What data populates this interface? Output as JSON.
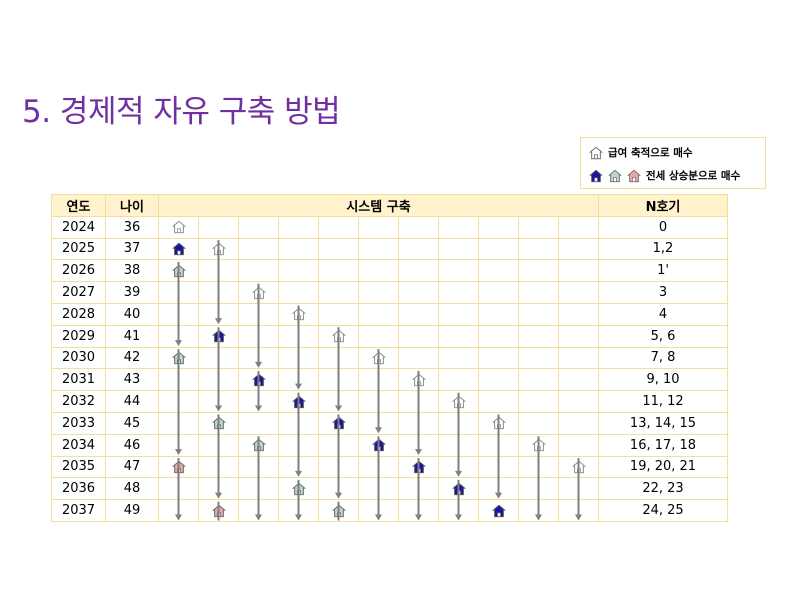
{
  "title": "5. 경제적 자유 구축 방법",
  "legend": {
    "item1_label": "급여 축적으로 매수",
    "item2_label": "전세 상승분으로 매수"
  },
  "colors": {
    "title": "#7030a0",
    "house_outline": "#8a8a8a",
    "house_blue": "#1a14a3",
    "house_teal": "#bcd3d6",
    "house_pink": "#e8a6a6",
    "header_bg": "#fff2cc",
    "grid_line": "#f3de9a",
    "arrow": "#7f7f7f"
  },
  "table": {
    "headers": {
      "year": "연도",
      "age": "나이",
      "system": "시스템 구축",
      "n": "N호기"
    },
    "rows": [
      {
        "year": "2024",
        "age": "36",
        "n": "0"
      },
      {
        "year": "2025",
        "age": "37",
        "n": "1,2"
      },
      {
        "year": "2026",
        "age": "38",
        "n": "1'"
      },
      {
        "year": "2027",
        "age": "39",
        "n": "3"
      },
      {
        "year": "2028",
        "age": "40",
        "n": "4"
      },
      {
        "year": "2029",
        "age": "41",
        "n": "5, 6"
      },
      {
        "year": "2030",
        "age": "42",
        "n": "7, 8"
      },
      {
        "year": "2031",
        "age": "43",
        "n": "9, 10"
      },
      {
        "year": "2032",
        "age": "44",
        "n": "11, 12"
      },
      {
        "year": "2033",
        "age": "45",
        "n": "13, 14, 15"
      },
      {
        "year": "2034",
        "age": "46",
        "n": "16, 17, 18"
      },
      {
        "year": "2035",
        "age": "47",
        "n": "19, 20, 21"
      },
      {
        "year": "2036",
        "age": "48",
        "n": "22, 23"
      },
      {
        "year": "2037",
        "age": "49",
        "n": "24, 25"
      }
    ]
  },
  "houses": [
    {
      "row": 0,
      "col": 0,
      "type": "outline"
    },
    {
      "row": 1,
      "col": 0,
      "type": "blue"
    },
    {
      "row": 1,
      "col": 1,
      "type": "outline"
    },
    {
      "row": 2,
      "col": 0,
      "type": "teal"
    },
    {
      "row": 3,
      "col": 2,
      "type": "outline"
    },
    {
      "row": 4,
      "col": 3,
      "type": "outline"
    },
    {
      "row": 5,
      "col": 1,
      "type": "blue"
    },
    {
      "row": 5,
      "col": 4,
      "type": "outline"
    },
    {
      "row": 6,
      "col": 0,
      "type": "teal"
    },
    {
      "row": 6,
      "col": 5,
      "type": "outline"
    },
    {
      "row": 7,
      "col": 2,
      "type": "blue"
    },
    {
      "row": 7,
      "col": 6,
      "type": "outline"
    },
    {
      "row": 8,
      "col": 3,
      "type": "blue"
    },
    {
      "row": 8,
      "col": 7,
      "type": "outline"
    },
    {
      "row": 9,
      "col": 1,
      "type": "teal"
    },
    {
      "row": 9,
      "col": 4,
      "type": "blue"
    },
    {
      "row": 9,
      "col": 8,
      "type": "outline"
    },
    {
      "row": 10,
      "col": 2,
      "type": "teal"
    },
    {
      "row": 10,
      "col": 5,
      "type": "blue"
    },
    {
      "row": 10,
      "col": 9,
      "type": "outline"
    },
    {
      "row": 11,
      "col": 0,
      "type": "pink"
    },
    {
      "row": 11,
      "col": 6,
      "type": "blue"
    },
    {
      "row": 11,
      "col": 10,
      "type": "outline"
    },
    {
      "row": 12,
      "col": 3,
      "type": "teal"
    },
    {
      "row": 12,
      "col": 7,
      "type": "blue"
    },
    {
      "row": 13,
      "col": 1,
      "type": "pink"
    },
    {
      "row": 13,
      "col": 4,
      "type": "teal"
    },
    {
      "row": 13,
      "col": 8,
      "type": "blue"
    }
  ],
  "arrows": [
    {
      "col": 0,
      "from": 2,
      "to": 5,
      "end": "head"
    },
    {
      "col": 0,
      "from": 6,
      "to": 10,
      "end": "head"
    },
    {
      "col": 0,
      "from": 11,
      "to": 13,
      "end": "head"
    },
    {
      "col": 1,
      "from": 1,
      "to": 4,
      "end": "head"
    },
    {
      "col": 1,
      "from": 5,
      "to": 8,
      "end": "head"
    },
    {
      "col": 1,
      "from": 9,
      "to": 12,
      "end": "head"
    },
    {
      "col": 1,
      "from": 13,
      "to": 13,
      "end": "cut"
    },
    {
      "col": 2,
      "from": 3,
      "to": 6,
      "end": "head"
    },
    {
      "col": 2,
      "from": 7,
      "to": 8,
      "end": "head"
    },
    {
      "col": 2,
      "from": 10,
      "to": 13,
      "end": "head"
    },
    {
      "col": 3,
      "from": 4,
      "to": 7,
      "end": "head"
    },
    {
      "col": 3,
      "from": 8,
      "to": 11,
      "end": "head"
    },
    {
      "col": 3,
      "from": 12,
      "to": 13,
      "end": "head"
    },
    {
      "col": 4,
      "from": 5,
      "to": 8,
      "end": "head"
    },
    {
      "col": 4,
      "from": 9,
      "to": 12,
      "end": "head"
    },
    {
      "col": 4,
      "from": 13,
      "to": 13,
      "end": "cut"
    },
    {
      "col": 5,
      "from": 6,
      "to": 9,
      "end": "head"
    },
    {
      "col": 5,
      "from": 10,
      "to": 13,
      "end": "head"
    },
    {
      "col": 6,
      "from": 7,
      "to": 10,
      "end": "head"
    },
    {
      "col": 6,
      "from": 11,
      "to": 13,
      "end": "head"
    },
    {
      "col": 7,
      "from": 8,
      "to": 11,
      "end": "head"
    },
    {
      "col": 7,
      "from": 12,
      "to": 13,
      "end": "head"
    },
    {
      "col": 8,
      "from": 9,
      "to": 12,
      "end": "head"
    },
    {
      "col": 9,
      "from": 10,
      "to": 13,
      "end": "head"
    },
    {
      "col": 10,
      "from": 11,
      "to": 13,
      "end": "head"
    }
  ]
}
